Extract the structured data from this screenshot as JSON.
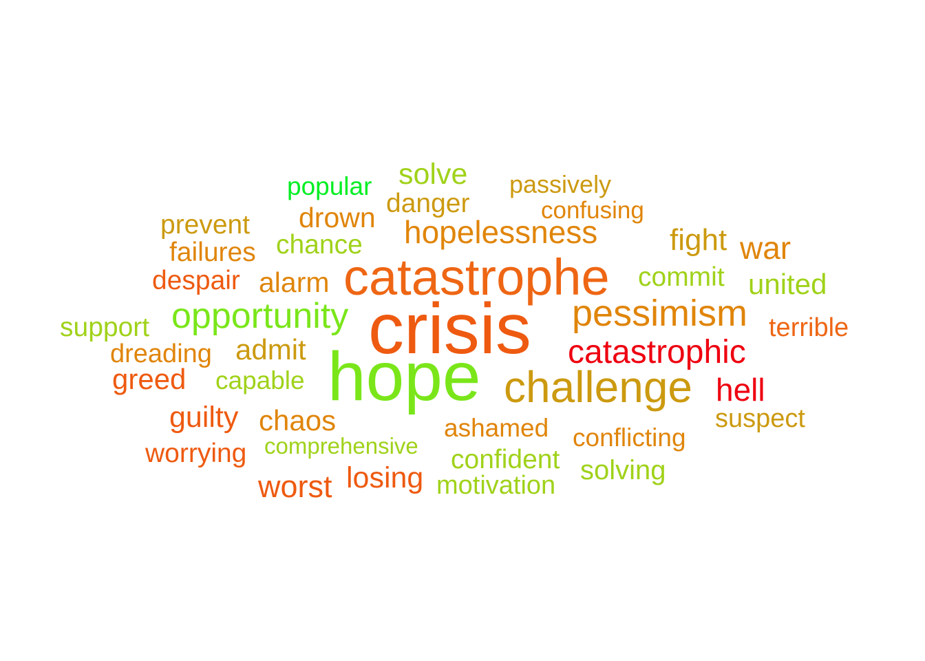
{
  "words": {
    "crisis": "crisis",
    "hope": "hope",
    "catastrophe": "catastrophe",
    "challenge": "challenge",
    "opportunity": "opportunity",
    "pessimism": "pessimism",
    "hopelessness": "hopelessness",
    "catastrophic": "catastrophic",
    "popular": "popular",
    "solve": "solve",
    "passively": "passively",
    "danger": "danger",
    "confusing": "confusing",
    "drown": "drown",
    "prevent": "prevent",
    "fight": "fight",
    "failures": "failures",
    "chance": "chance",
    "war": "war",
    "despair": "despair",
    "alarm": "alarm",
    "commit": "commit",
    "united": "united",
    "support": "support",
    "terrible": "terrible",
    "dreading": "dreading",
    "admit": "admit",
    "greed": "greed",
    "capable": "capable",
    "hell": "hell",
    "guilty": "guilty",
    "chaos": "chaos",
    "suspect": "suspect",
    "ashamed": "ashamed",
    "conflicting": "conflicting",
    "comprehensive": "comprehensive",
    "worrying": "worrying",
    "confident": "confident",
    "solving": "solving",
    "losing": "losing",
    "worst": "worst",
    "motivation": "motivation"
  },
  "colors": {
    "lime": "#7ae61a",
    "yellow_green": "#a0d21a",
    "green": "#00ee22",
    "gold": "#cc9a10",
    "amber": "#e0850a",
    "orange": "#ee6614",
    "dark_orange": "#ee5a10",
    "red": "#ee0010"
  }
}
